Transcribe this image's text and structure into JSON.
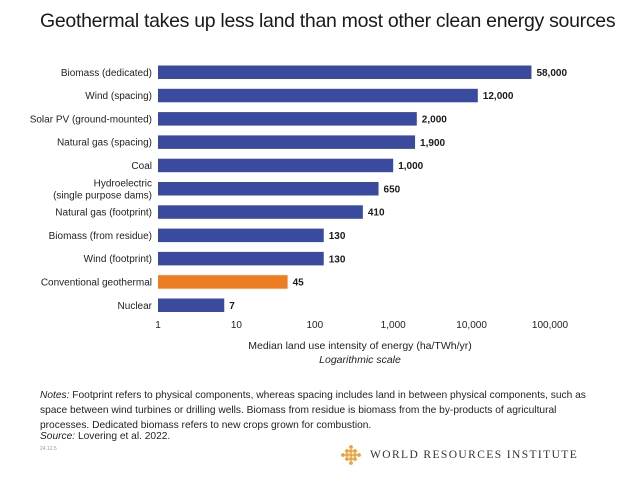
{
  "chart_data": {
    "type": "bar",
    "orientation": "horizontal",
    "title": "Geothermal takes up less land than most other clean energy sources",
    "categories": [
      "Biomass (dedicated)",
      "Wind (spacing)",
      "Solar PV (ground-mounted)",
      "Natural gas (spacing)",
      "Coal",
      "Hydroelectric\n(single purpose dams)",
      "Natural gas (footprint)",
      "Biomass (from residue)",
      "Wind (footprint)",
      "Conventional geothermal",
      "Nuclear"
    ],
    "values": [
      58000,
      12000,
      2000,
      1900,
      1000,
      650,
      410,
      130,
      130,
      45,
      7
    ],
    "value_labels": [
      "58,000",
      "12,000",
      "2,000",
      "1,900",
      "1,000",
      "650",
      "410",
      "130",
      "130",
      "45",
      "7"
    ],
    "highlight_index": 9,
    "xlabel": "Median land use intensity of energy (ha/TWh/yr)",
    "xlabel_sub": "Logarithmic scale",
    "xscale": "log",
    "xlim": [
      1,
      100000
    ],
    "xticks": [
      1,
      10,
      100,
      1000,
      10000,
      100000
    ],
    "xtick_labels": [
      "1",
      "10",
      "100",
      "1,000",
      "10,000",
      "100,000"
    ],
    "grid": false,
    "colors": {
      "bar": "#3a4b9f",
      "highlight": "#ee7d22",
      "label": "#1a1a1a"
    }
  },
  "notes": {
    "lead": "Notes:",
    "text": " Footprint refers to physical components, whereas spacing includes land in between physical components, such as space between wind turbines or drilling wells. Biomass from residue is biomass from the by-products of agricultural processes. Dedicated biomass refers to new crops grown for combustion."
  },
  "source": {
    "lead": "Source:",
    "text": " Lovering et al. 2022."
  },
  "code": "24.12.5",
  "logo": {
    "text": "WORLD RESOURCES INSTITUTE",
    "color": "#e8a33d"
  }
}
